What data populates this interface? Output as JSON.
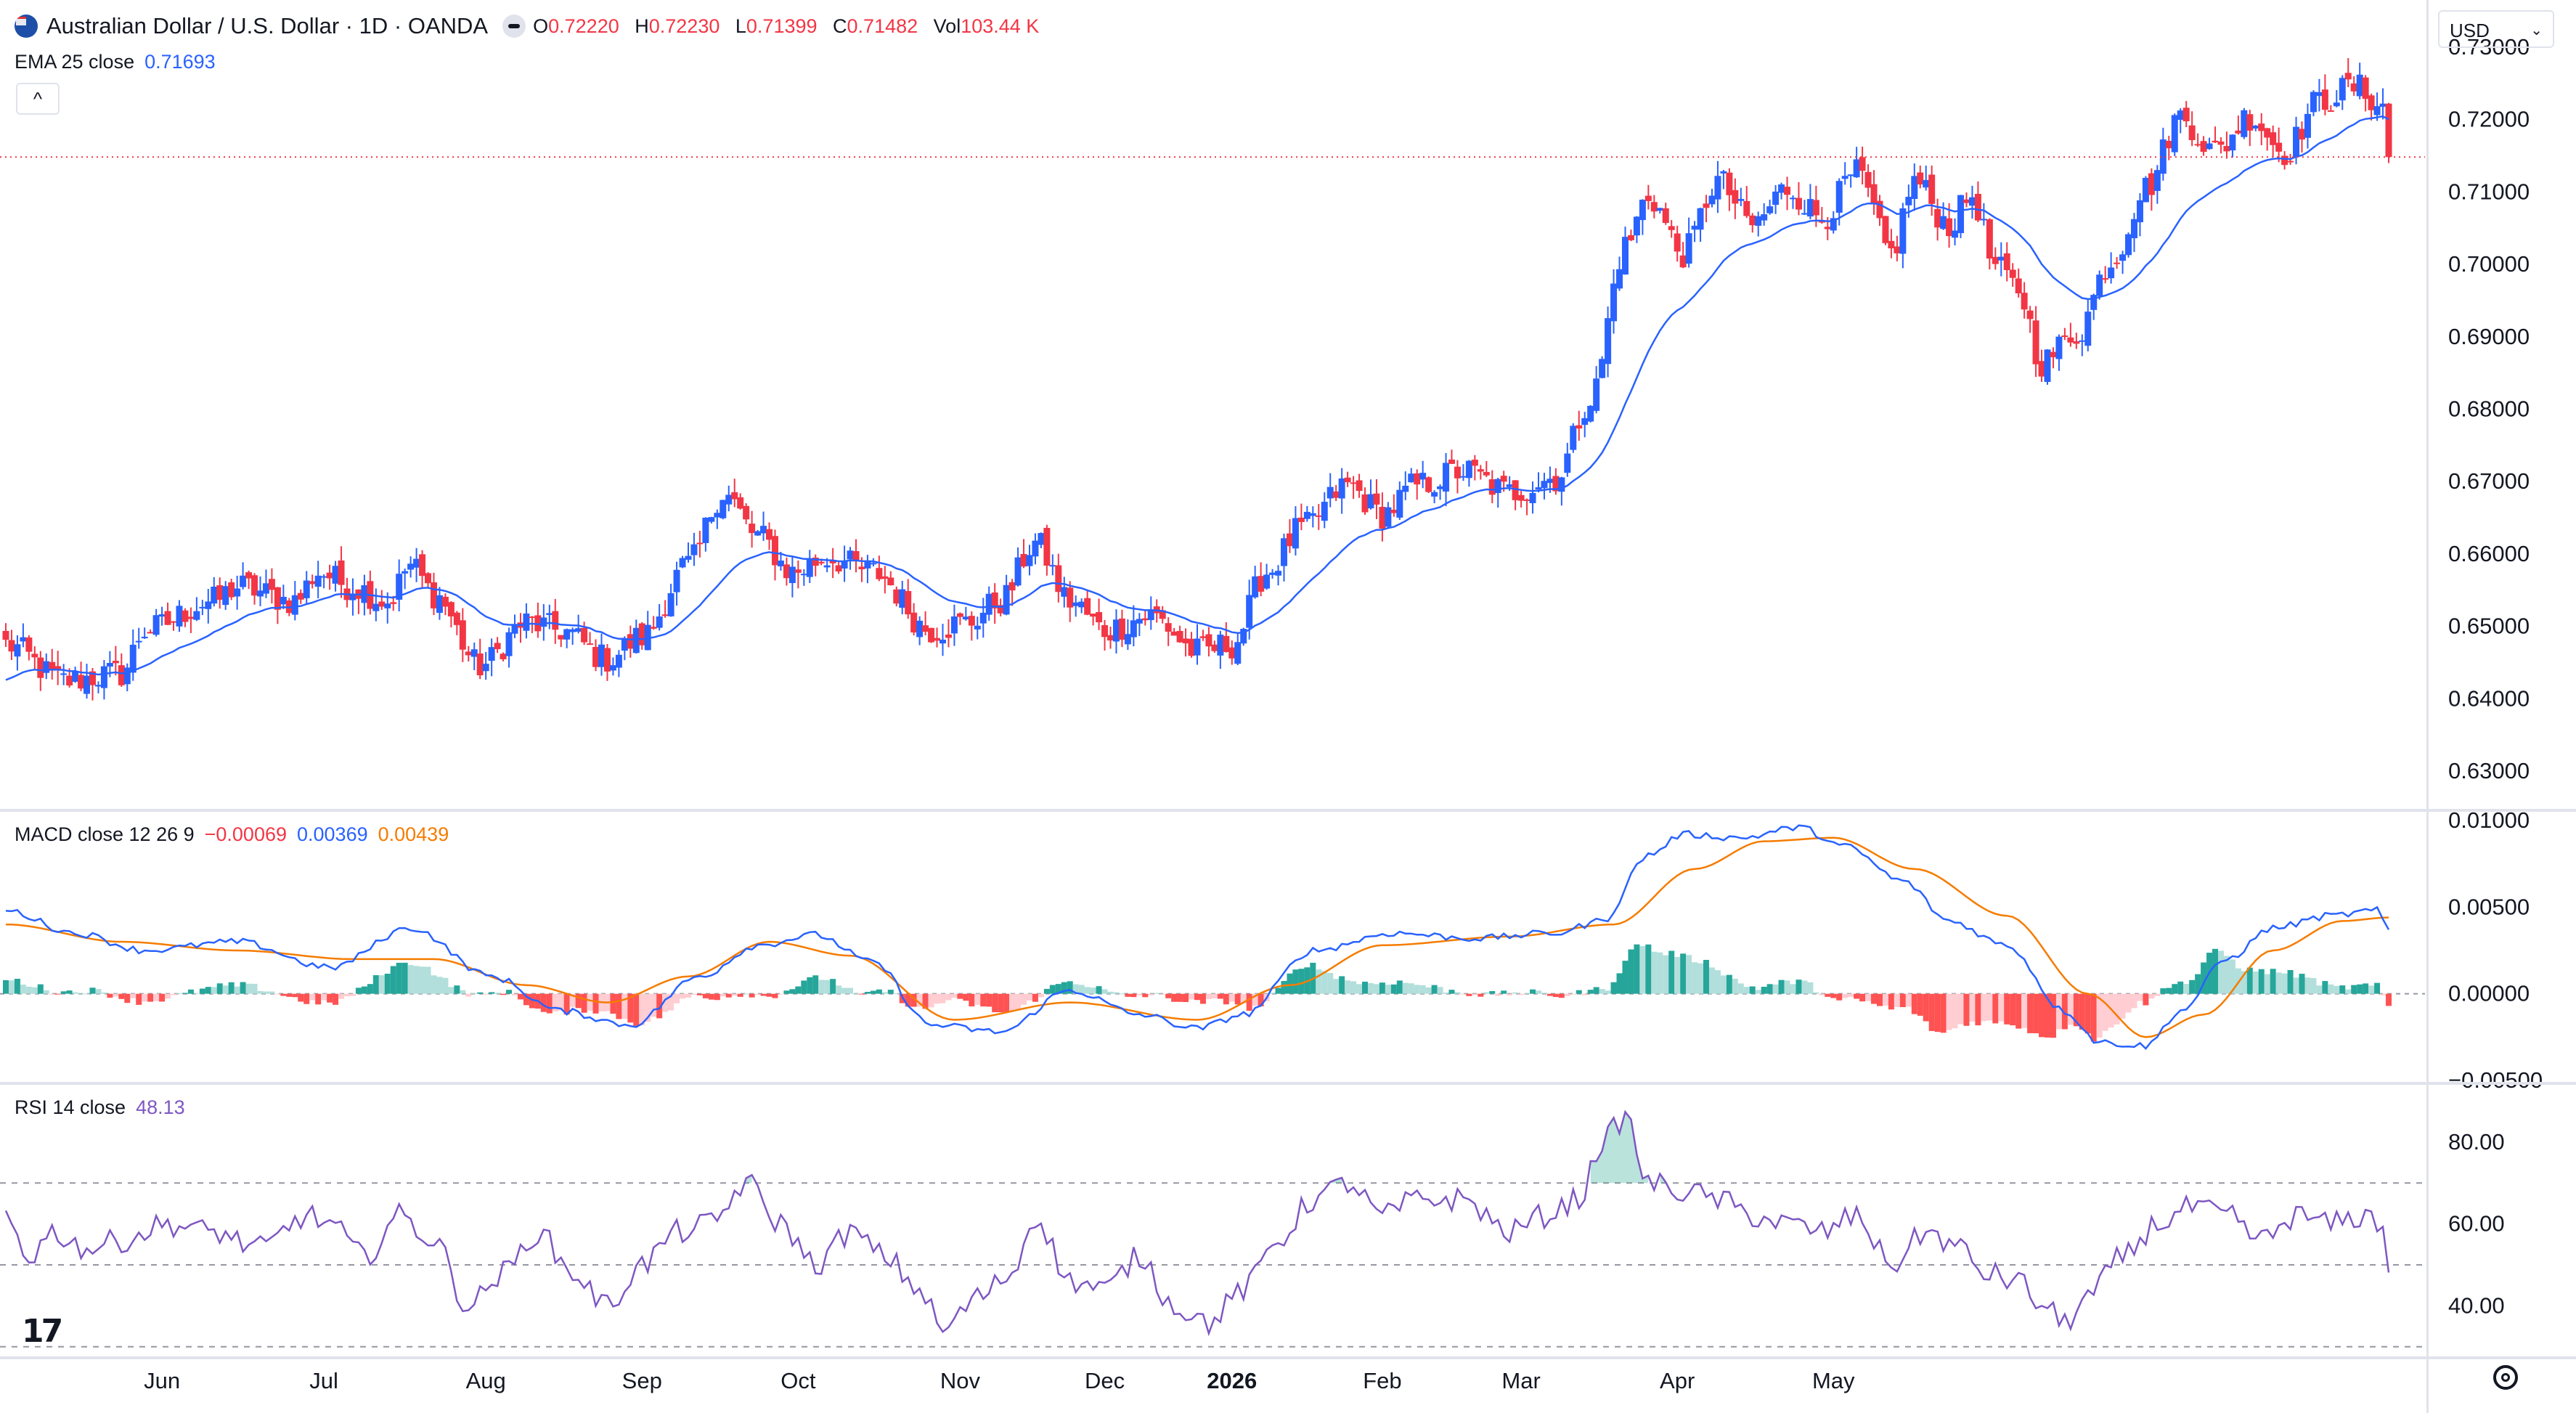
{
  "header": {
    "title": "Australian Dollar / U.S. Dollar · 1D · OANDA",
    "ohlc": [
      {
        "key": "O",
        "value": "0.72220"
      },
      {
        "key": "H",
        "value": "0.72230"
      },
      {
        "key": "L",
        "value": "0.71399"
      },
      {
        "key": "C",
        "value": "0.71482"
      },
      {
        "key": "Vol",
        "value": "103.44 K"
      }
    ]
  },
  "ema_legend": {
    "label": "EMA 25 close",
    "value": "0.71693"
  },
  "macd_legend": {
    "label": "MACD close 12 26 9",
    "hist": "−0.00069",
    "macd": "0.00369",
    "signal": "0.00439"
  },
  "rsi_legend": {
    "label": "RSI 14 close",
    "value": "48.13"
  },
  "currency": "USD",
  "colors": {
    "up": "#089981",
    "up_candle": "#2962ff",
    "down": "#f23645",
    "ema": "#2962ff",
    "macd": "#2962ff",
    "signal": "#f57c00",
    "rsi": "#7e57c2",
    "hist_up_strong": "#26a69a",
    "hist_up_weak": "#b2dfdb",
    "hist_down_strong": "#ff5252",
    "hist_down_weak": "#ffcdd2"
  },
  "chart_data": [
    {
      "type": "candlestick",
      "title": "Australian Dollar / U.S. Dollar · 1D · OANDA",
      "ylim": [
        0.625,
        0.7335
      ],
      "y_ticks": [
        "0.73000",
        "0.72000",
        "0.71000",
        "0.70000",
        "0.69000",
        "0.68000",
        "0.67000",
        "0.66000",
        "0.65000",
        "0.64000",
        "0.63000"
      ],
      "x_ticks": [
        "Jun",
        "Jul",
        "Aug",
        "Sep",
        "Oct",
        "Nov",
        "Dec",
        "2026",
        "Feb",
        "Mar",
        "Apr",
        "May"
      ],
      "last_price_line": 0.71482,
      "close_anchors": [
        [
          0,
          0.6475
        ],
        [
          10,
          0.6425
        ],
        [
          20,
          0.6435
        ],
        [
          24,
          0.6495
        ],
        [
          36,
          0.6535
        ],
        [
          40,
          0.6555
        ],
        [
          50,
          0.6535
        ],
        [
          54,
          0.6575
        ],
        [
          60,
          0.6555
        ],
        [
          66,
          0.6535
        ],
        [
          70,
          0.6585
        ],
        [
          74,
          0.6545
        ],
        [
          82,
          0.6445
        ],
        [
          90,
          0.6505
        ],
        [
          96,
          0.6495
        ],
        [
          104,
          0.6455
        ],
        [
          110,
          0.6485
        ],
        [
          118,
          0.6585
        ],
        [
          124,
          0.6685
        ],
        [
          130,
          0.6625
        ],
        [
          136,
          0.6575
        ],
        [
          142,
          0.6595
        ],
        [
          150,
          0.6575
        ],
        [
          160,
          0.6495
        ],
        [
          166,
          0.6505
        ],
        [
          172,
          0.6535
        ],
        [
          178,
          0.6615
        ],
        [
          184,
          0.6535
        ],
        [
          190,
          0.6495
        ],
        [
          198,
          0.6515
        ],
        [
          206,
          0.6465
        ],
        [
          212,
          0.6475
        ],
        [
          218,
          0.6575
        ],
        [
          224,
          0.6635
        ],
        [
          232,
          0.6695
        ],
        [
          238,
          0.6655
        ],
        [
          244,
          0.6695
        ],
        [
          252,
          0.6715
        ],
        [
          260,
          0.6685
        ],
        [
          268,
          0.6705
        ],
        [
          274,
          0.6815
        ],
        [
          280,
          0.7025
        ],
        [
          284,
          0.7095
        ],
        [
          290,
          0.7015
        ],
        [
          296,
          0.7115
        ],
        [
          302,
          0.7055
        ],
        [
          308,
          0.7105
        ],
        [
          314,
          0.7065
        ],
        [
          320,
          0.7125
        ],
        [
          326,
          0.7015
        ],
        [
          330,
          0.7115
        ],
        [
          336,
          0.7055
        ],
        [
          340,
          0.7095
        ],
        [
          344,
          0.6995
        ],
        [
          348,
          0.6965
        ],
        [
          352,
          0.6865
        ],
        [
          358,
          0.6905
        ],
        [
          364,
          0.7005
        ],
        [
          370,
          0.7105
        ],
        [
          376,
          0.7205
        ],
        [
          382,
          0.7155
        ],
        [
          388,
          0.7205
        ],
        [
          394,
          0.7155
        ],
        [
          400,
          0.7225
        ],
        [
          406,
          0.7245
        ],
        [
          411,
          0.7222
        ],
        [
          412,
          0.7148
        ]
      ],
      "series": [
        {
          "name": "EMA 25 close",
          "last_value": 0.71693
        }
      ]
    },
    {
      "type": "line",
      "title": "MACD close 12 26 9",
      "ylim": [
        -0.005,
        0.0105
      ],
      "y_ticks": [
        "0.01000",
        "0.00500",
        "0.00000",
        "−0.00500"
      ],
      "macd_anchors": [
        [
          0,
          0.0048
        ],
        [
          12,
          0.0035
        ],
        [
          24,
          0.0025
        ],
        [
          40,
          0.003
        ],
        [
          56,
          0.0015
        ],
        [
          70,
          0.0038
        ],
        [
          84,
          0.001
        ],
        [
          96,
          -0.001
        ],
        [
          108,
          -0.0018
        ],
        [
          120,
          0.001
        ],
        [
          130,
          0.0028
        ],
        [
          140,
          0.0034
        ],
        [
          150,
          0.0018
        ],
        [
          160,
          -0.0018
        ],
        [
          172,
          -0.0022
        ],
        [
          184,
          0.0002
        ],
        [
          196,
          -0.0012
        ],
        [
          206,
          -0.002
        ],
        [
          214,
          -0.0012
        ],
        [
          226,
          0.0025
        ],
        [
          240,
          0.0035
        ],
        [
          254,
          0.0032
        ],
        [
          268,
          0.0035
        ],
        [
          276,
          0.0042
        ],
        [
          284,
          0.008
        ],
        [
          290,
          0.0092
        ],
        [
          300,
          0.009
        ],
        [
          310,
          0.0096
        ],
        [
          318,
          0.0085
        ],
        [
          328,
          0.0065
        ],
        [
          336,
          0.0042
        ],
        [
          346,
          0.0028
        ],
        [
          356,
          -0.001
        ],
        [
          362,
          -0.0028
        ],
        [
          370,
          -0.003
        ],
        [
          376,
          -0.001
        ],
        [
          384,
          0.002
        ],
        [
          392,
          0.0038
        ],
        [
          402,
          0.0045
        ],
        [
          410,
          0.0048
        ],
        [
          412,
          0.0037
        ]
      ],
      "signal_anchors": [
        [
          0,
          0.004
        ],
        [
          20,
          0.003
        ],
        [
          40,
          0.0025
        ],
        [
          60,
          0.002
        ],
        [
          74,
          0.002
        ],
        [
          90,
          0.0005
        ],
        [
          104,
          -0.0005
        ],
        [
          118,
          0.001
        ],
        [
          132,
          0.003
        ],
        [
          146,
          0.0022
        ],
        [
          164,
          -0.0015
        ],
        [
          184,
          -0.0005
        ],
        [
          206,
          -0.0015
        ],
        [
          222,
          0.0005
        ],
        [
          238,
          0.0028
        ],
        [
          260,
          0.0033
        ],
        [
          278,
          0.004
        ],
        [
          292,
          0.0072
        ],
        [
          304,
          0.0088
        ],
        [
          316,
          0.009
        ],
        [
          330,
          0.0072
        ],
        [
          346,
          0.0045
        ],
        [
          360,
          0.0
        ],
        [
          370,
          -0.0025
        ],
        [
          380,
          -0.0012
        ],
        [
          392,
          0.0025
        ],
        [
          404,
          0.0042
        ],
        [
          412,
          0.0044
        ]
      ],
      "series": [
        {
          "name": "MACD",
          "last_value": 0.00369
        },
        {
          "name": "Signal",
          "last_value": 0.00439
        },
        {
          "name": "Histogram",
          "last_value": -0.00069
        }
      ]
    },
    {
      "type": "line",
      "title": "RSI 14 close",
      "ylim": [
        28,
        94
      ],
      "y_ticks": [
        "80.00",
        "60.00",
        "40.00"
      ],
      "bands": [
        70,
        50,
        30
      ],
      "rsi_anchors": [
        [
          0,
          62
        ],
        [
          4,
          52
        ],
        [
          8,
          58
        ],
        [
          14,
          54
        ],
        [
          20,
          56
        ],
        [
          28,
          60
        ],
        [
          36,
          58
        ],
        [
          44,
          54
        ],
        [
          52,
          62
        ],
        [
          56,
          60
        ],
        [
          62,
          52
        ],
        [
          68,
          62
        ],
        [
          74,
          56
        ],
        [
          80,
          40
        ],
        [
          86,
          48
        ],
        [
          92,
          58
        ],
        [
          98,
          48
        ],
        [
          104,
          40
        ],
        [
          110,
          50
        ],
        [
          116,
          58
        ],
        [
          122,
          60
        ],
        [
          128,
          70
        ],
        [
          134,
          60
        ],
        [
          140,
          50
        ],
        [
          146,
          58
        ],
        [
          152,
          52
        ],
        [
          158,
          44
        ],
        [
          162,
          34
        ],
        [
          168,
          42
        ],
        [
          174,
          48
        ],
        [
          178,
          62
        ],
        [
          184,
          46
        ],
        [
          190,
          44
        ],
        [
          196,
          52
        ],
        [
          202,
          40
        ],
        [
          208,
          36
        ],
        [
          214,
          44
        ],
        [
          220,
          56
        ],
        [
          226,
          66
        ],
        [
          232,
          70
        ],
        [
          238,
          62
        ],
        [
          244,
          66
        ],
        [
          252,
          66
        ],
        [
          260,
          58
        ],
        [
          266,
          62
        ],
        [
          272,
          66
        ],
        [
          276,
          80
        ],
        [
          280,
          86
        ],
        [
          284,
          70
        ],
        [
          290,
          68
        ],
        [
          296,
          66
        ],
        [
          302,
          62
        ],
        [
          308,
          60
        ],
        [
          314,
          58
        ],
        [
          320,
          62
        ],
        [
          326,
          50
        ],
        [
          332,
          58
        ],
        [
          338,
          54
        ],
        [
          342,
          48
        ],
        [
          348,
          46
        ],
        [
          352,
          40
        ],
        [
          356,
          36
        ],
        [
          360,
          42
        ],
        [
          366,
          52
        ],
        [
          372,
          60
        ],
        [
          378,
          64
        ],
        [
          384,
          62
        ],
        [
          390,
          56
        ],
        [
          396,
          62
        ],
        [
          402,
          60
        ],
        [
          408,
          62
        ],
        [
          411,
          60
        ],
        [
          412,
          48
        ]
      ],
      "series": [
        {
          "name": "RSI",
          "last_value": 48.13
        }
      ]
    }
  ]
}
